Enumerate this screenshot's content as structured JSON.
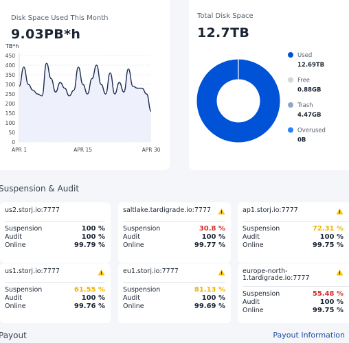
{
  "disk_space_used": {
    "title": "Disk Space Used This Month",
    "value": "9.03PB*h",
    "chart_data": {
      "type": "line",
      "y_label": "TB*h",
      "categories": [
        "APR 1",
        null,
        null,
        null,
        null,
        null,
        null,
        null,
        null,
        null,
        null,
        null,
        null,
        null,
        "APR 15",
        null,
        null,
        null,
        null,
        null,
        null,
        null,
        null,
        null,
        null,
        null,
        null,
        null,
        null,
        "APR 30"
      ],
      "values": [
        290,
        390,
        300,
        270,
        250,
        240,
        410,
        330,
        260,
        310,
        280,
        240,
        270,
        390,
        300,
        250,
        330,
        400,
        300,
        250,
        360,
        250,
        310,
        260,
        380,
        290,
        280,
        280,
        250,
        160
      ],
      "color": "#1c2b4f",
      "fill": "#eef0fb",
      "ylim": [
        0,
        450
      ],
      "yticks": [
        0,
        50,
        100,
        150,
        200,
        250,
        300,
        350,
        400,
        450
      ],
      "grid": true
    }
  },
  "total_disk_space": {
    "title": "Total Disk Space",
    "value": "12.7TB",
    "chart_data": {
      "type": "donut",
      "categories": [
        "Used",
        "Free",
        "Trash",
        "Overused"
      ],
      "values": [
        12.69,
        0.00088,
        0.00447,
        0
      ],
      "value_labels": [
        "12.69TB",
        "0.88GB",
        "4.47GB",
        "0B"
      ],
      "colors": [
        "#0052d6",
        "#d6d6d6",
        "#8fa7c6",
        "#2582ff"
      ]
    }
  },
  "suspension_audit": {
    "title": "Suspension & Audit",
    "labels": {
      "suspension": "Suspension",
      "audit": "Audit",
      "online": "Online"
    },
    "nodes": [
      {
        "name": "us2.storj.io:7777",
        "warning": false,
        "suspension": "100 %",
        "suspension_color": "#1b2533",
        "audit": "100 %",
        "online": "99.79 %"
      },
      {
        "name": "saltlake.tardigrade.io:7777",
        "warning": true,
        "suspension": "30.8 %",
        "suspension_color": "#d92d2d",
        "audit": "100 %",
        "online": "99.77 %"
      },
      {
        "name": "ap1.storj.io:7777",
        "warning": true,
        "suspension": "72.31 %",
        "suspension_color": "#f0b400",
        "audit": "100 %",
        "online": "99.75 %"
      },
      {
        "name": "us1.storj.io:7777",
        "warning": true,
        "suspension": "61.55 %",
        "suspension_color": "#f0b400",
        "audit": "100 %",
        "online": "99.76 %"
      },
      {
        "name": "eu1.storj.io:7777",
        "warning": true,
        "suspension": "81.13 %",
        "suspension_color": "#f0b400",
        "audit": "100 %",
        "online": "99.69 %"
      },
      {
        "name": "europe-north-1.tardigrade.io:7777",
        "warning": true,
        "suspension": "55.48 %",
        "suspension_color": "#d92d2d",
        "audit": "100 %",
        "online": "99.75 %"
      }
    ]
  },
  "payout": {
    "title": "Payout",
    "link": "Payout Information"
  }
}
